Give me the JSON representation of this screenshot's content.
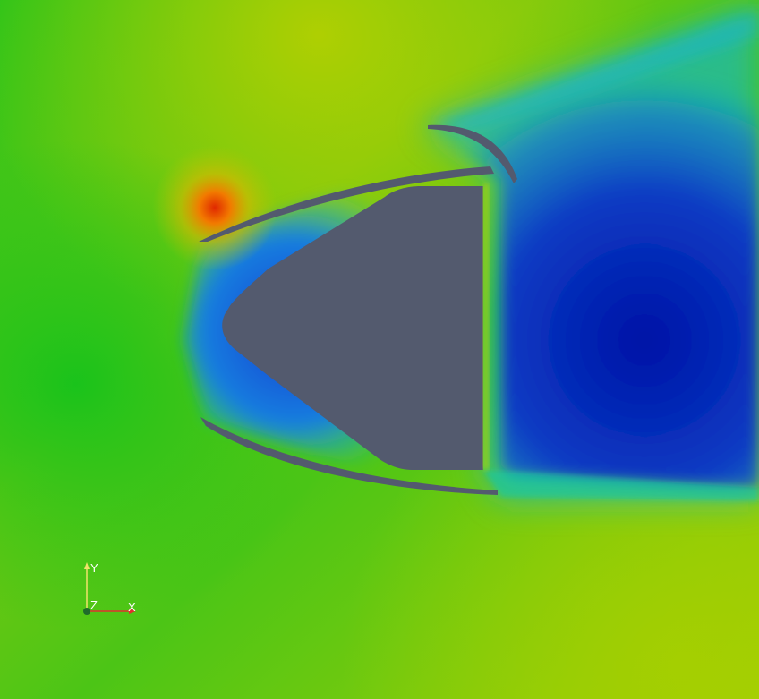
{
  "scene": {
    "colors": {
      "background_green": "#22c21a",
      "upper_yellow": "#b3cf00",
      "stagnation_red": "#e23a00",
      "wake_blue": "#0a2fb8",
      "deep_blue": "#0018a8",
      "cyan": "#12c7d6",
      "solid_gray": "#535a6e"
    },
    "orientation_axes": {
      "x_label": "X",
      "y_label": "Y",
      "z_label": "Z",
      "x_color": "#e03030",
      "y_color": "#f2e26a",
      "z_color": "#1f6b2b"
    }
  }
}
